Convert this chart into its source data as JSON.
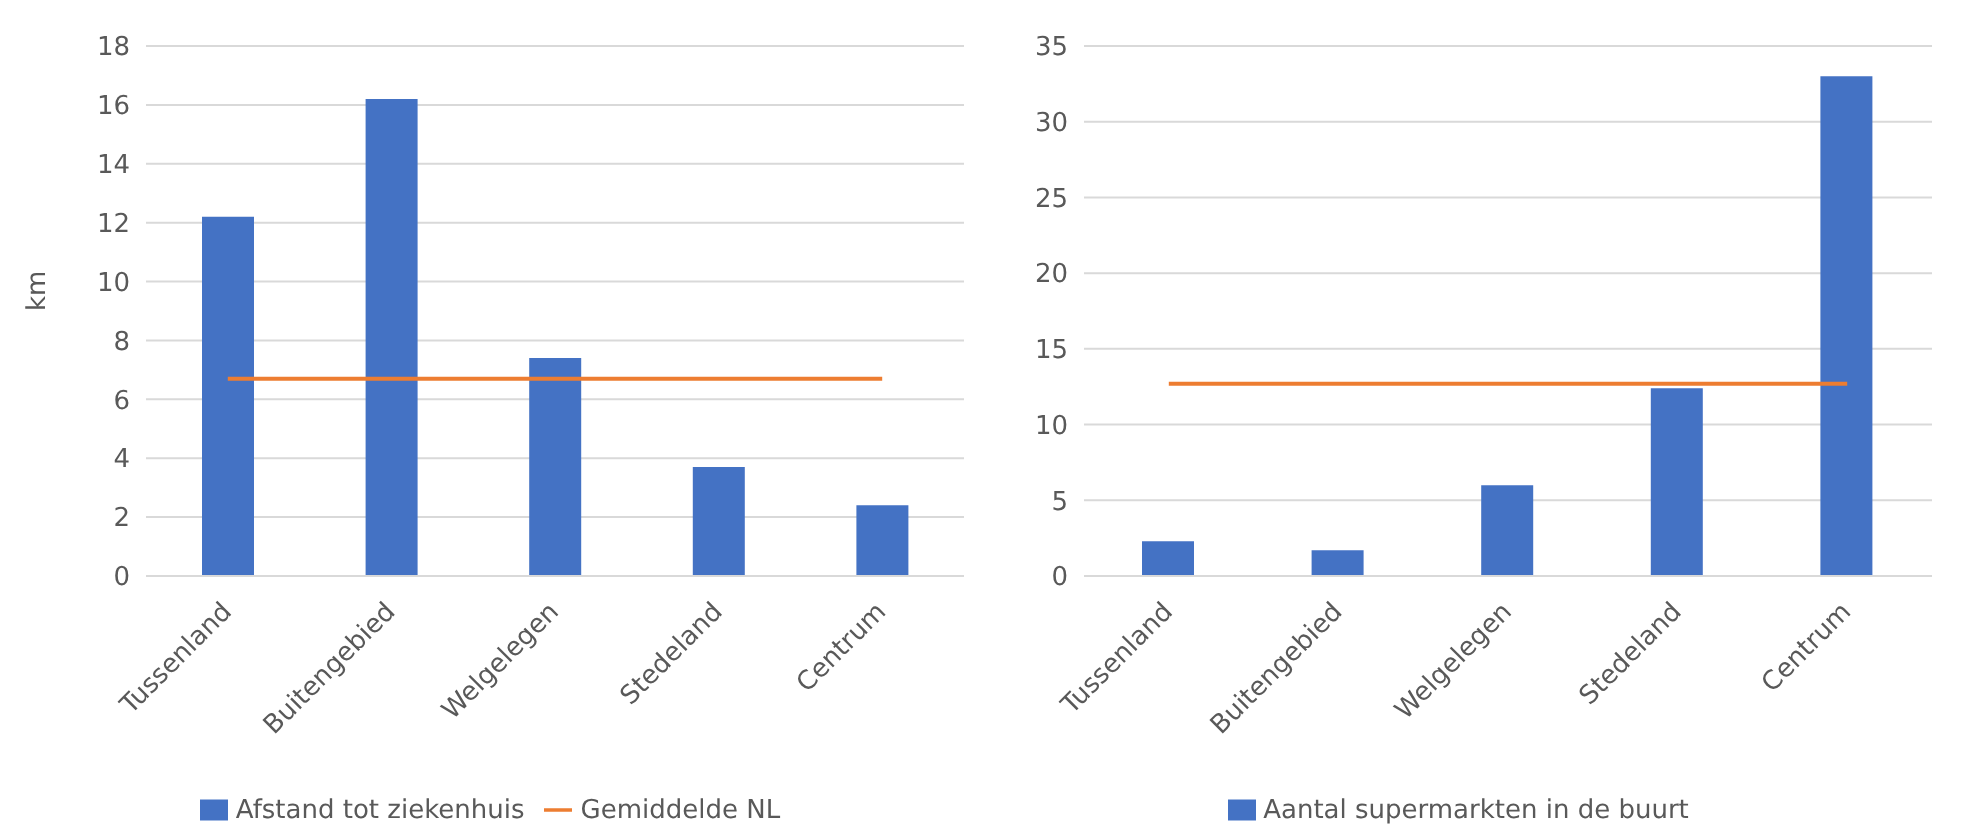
{
  "chart_data": [
    {
      "type": "bar",
      "ylabel": "km",
      "categories": [
        "Tussenland",
        "Buitengebied",
        "Welgelegen",
        "Stedeland",
        "Centrum"
      ],
      "series": [
        {
          "name": "Afstand tot ziekenhuis",
          "color": "#4472c4",
          "values": [
            12.2,
            16.2,
            7.4,
            3.7,
            2.4
          ]
        },
        {
          "name": "Gemiddelde NL",
          "type": "line",
          "color": "#ed7d31",
          "values": [
            6.7,
            6.7,
            6.7,
            6.7,
            6.7
          ]
        }
      ],
      "ylim": [
        0,
        18
      ],
      "yticks": [
        0,
        2,
        4,
        6,
        8,
        10,
        12,
        14,
        16,
        18
      ],
      "grid": "y",
      "legend": "bottom",
      "marker": "none"
    },
    {
      "type": "bar",
      "categories": [
        "Tussenland",
        "Buitengebied",
        "Welgelegen",
        "Stedeland",
        "Centrum"
      ],
      "series": [
        {
          "name": "Aantal supermarkten in de buurt",
          "color": "#4472c4",
          "values": [
            2.3,
            1.7,
            6.0,
            12.4,
            33.0
          ]
        },
        {
          "type": "line",
          "color": "#ed7d31",
          "values": [
            12.7,
            12.7,
            12.7,
            12.7,
            12.7
          ]
        }
      ],
      "ylim": [
        0,
        35
      ],
      "yticks": [
        0,
        5,
        10,
        15,
        20,
        25,
        30,
        35
      ],
      "grid": "y",
      "legend": "bottom",
      "marker": "none"
    }
  ]
}
